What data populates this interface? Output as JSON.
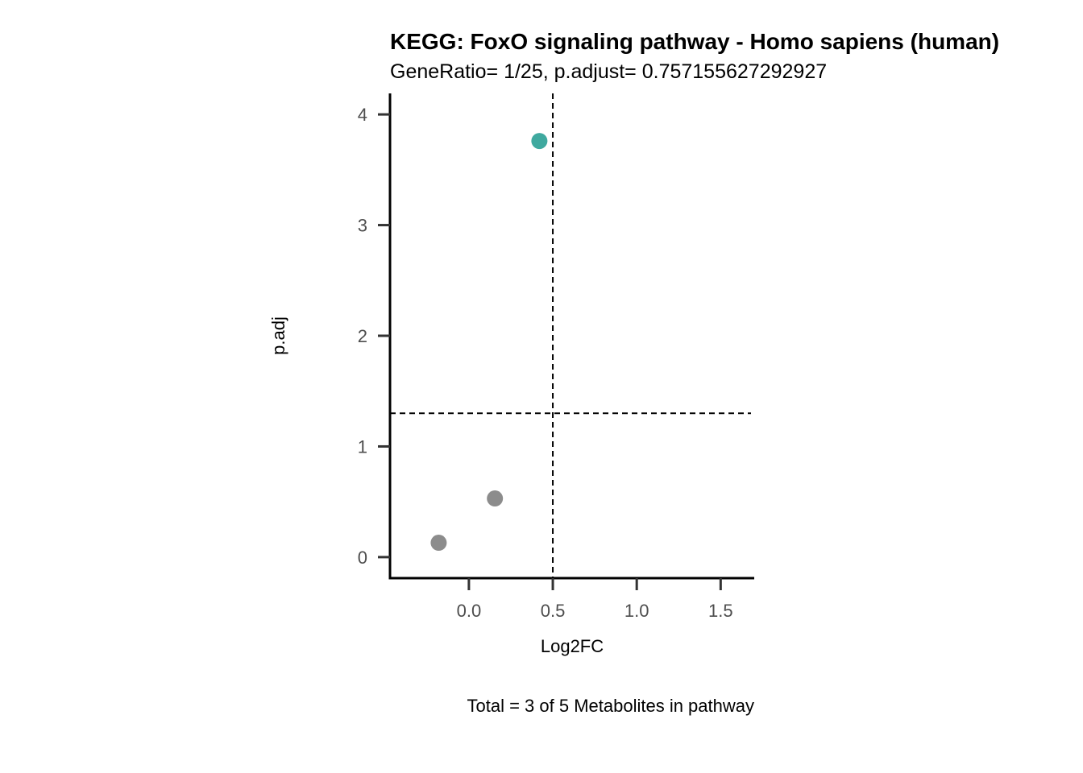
{
  "chart_data": {
    "type": "scatter",
    "title": "KEGG: FoxO signaling pathway - Homo sapiens (human)",
    "subtitle": "GeneRatio= 1/25, p.adjust= 0.757155627292927",
    "xlabel": "Log2FC",
    "ylabel": "p.adj",
    "caption": "Total = 3 of 5 Metabolites in pathway",
    "xlim": [
      -0.47,
      1.7
    ],
    "ylim": [
      -0.19,
      4.19
    ],
    "x_ticks": [
      0.0,
      0.5,
      1.0,
      1.5
    ],
    "x_tick_labels": [
      "0.0",
      "0.5",
      "1.0",
      "1.5"
    ],
    "y_ticks": [
      0,
      1,
      2,
      3,
      4
    ],
    "y_tick_labels": [
      "0",
      "1",
      "2",
      "3",
      "4"
    ],
    "threshold_lines": {
      "x": 0.5,
      "y": 1.3
    },
    "grid": false,
    "points": [
      {
        "x": 0.42,
        "y": 3.76,
        "color": "#3fa99f"
      },
      {
        "x": 0.155,
        "y": 0.53,
        "color": "#8c8c8c"
      },
      {
        "x": -0.18,
        "y": 0.13,
        "color": "#8c8c8c"
      }
    ]
  }
}
